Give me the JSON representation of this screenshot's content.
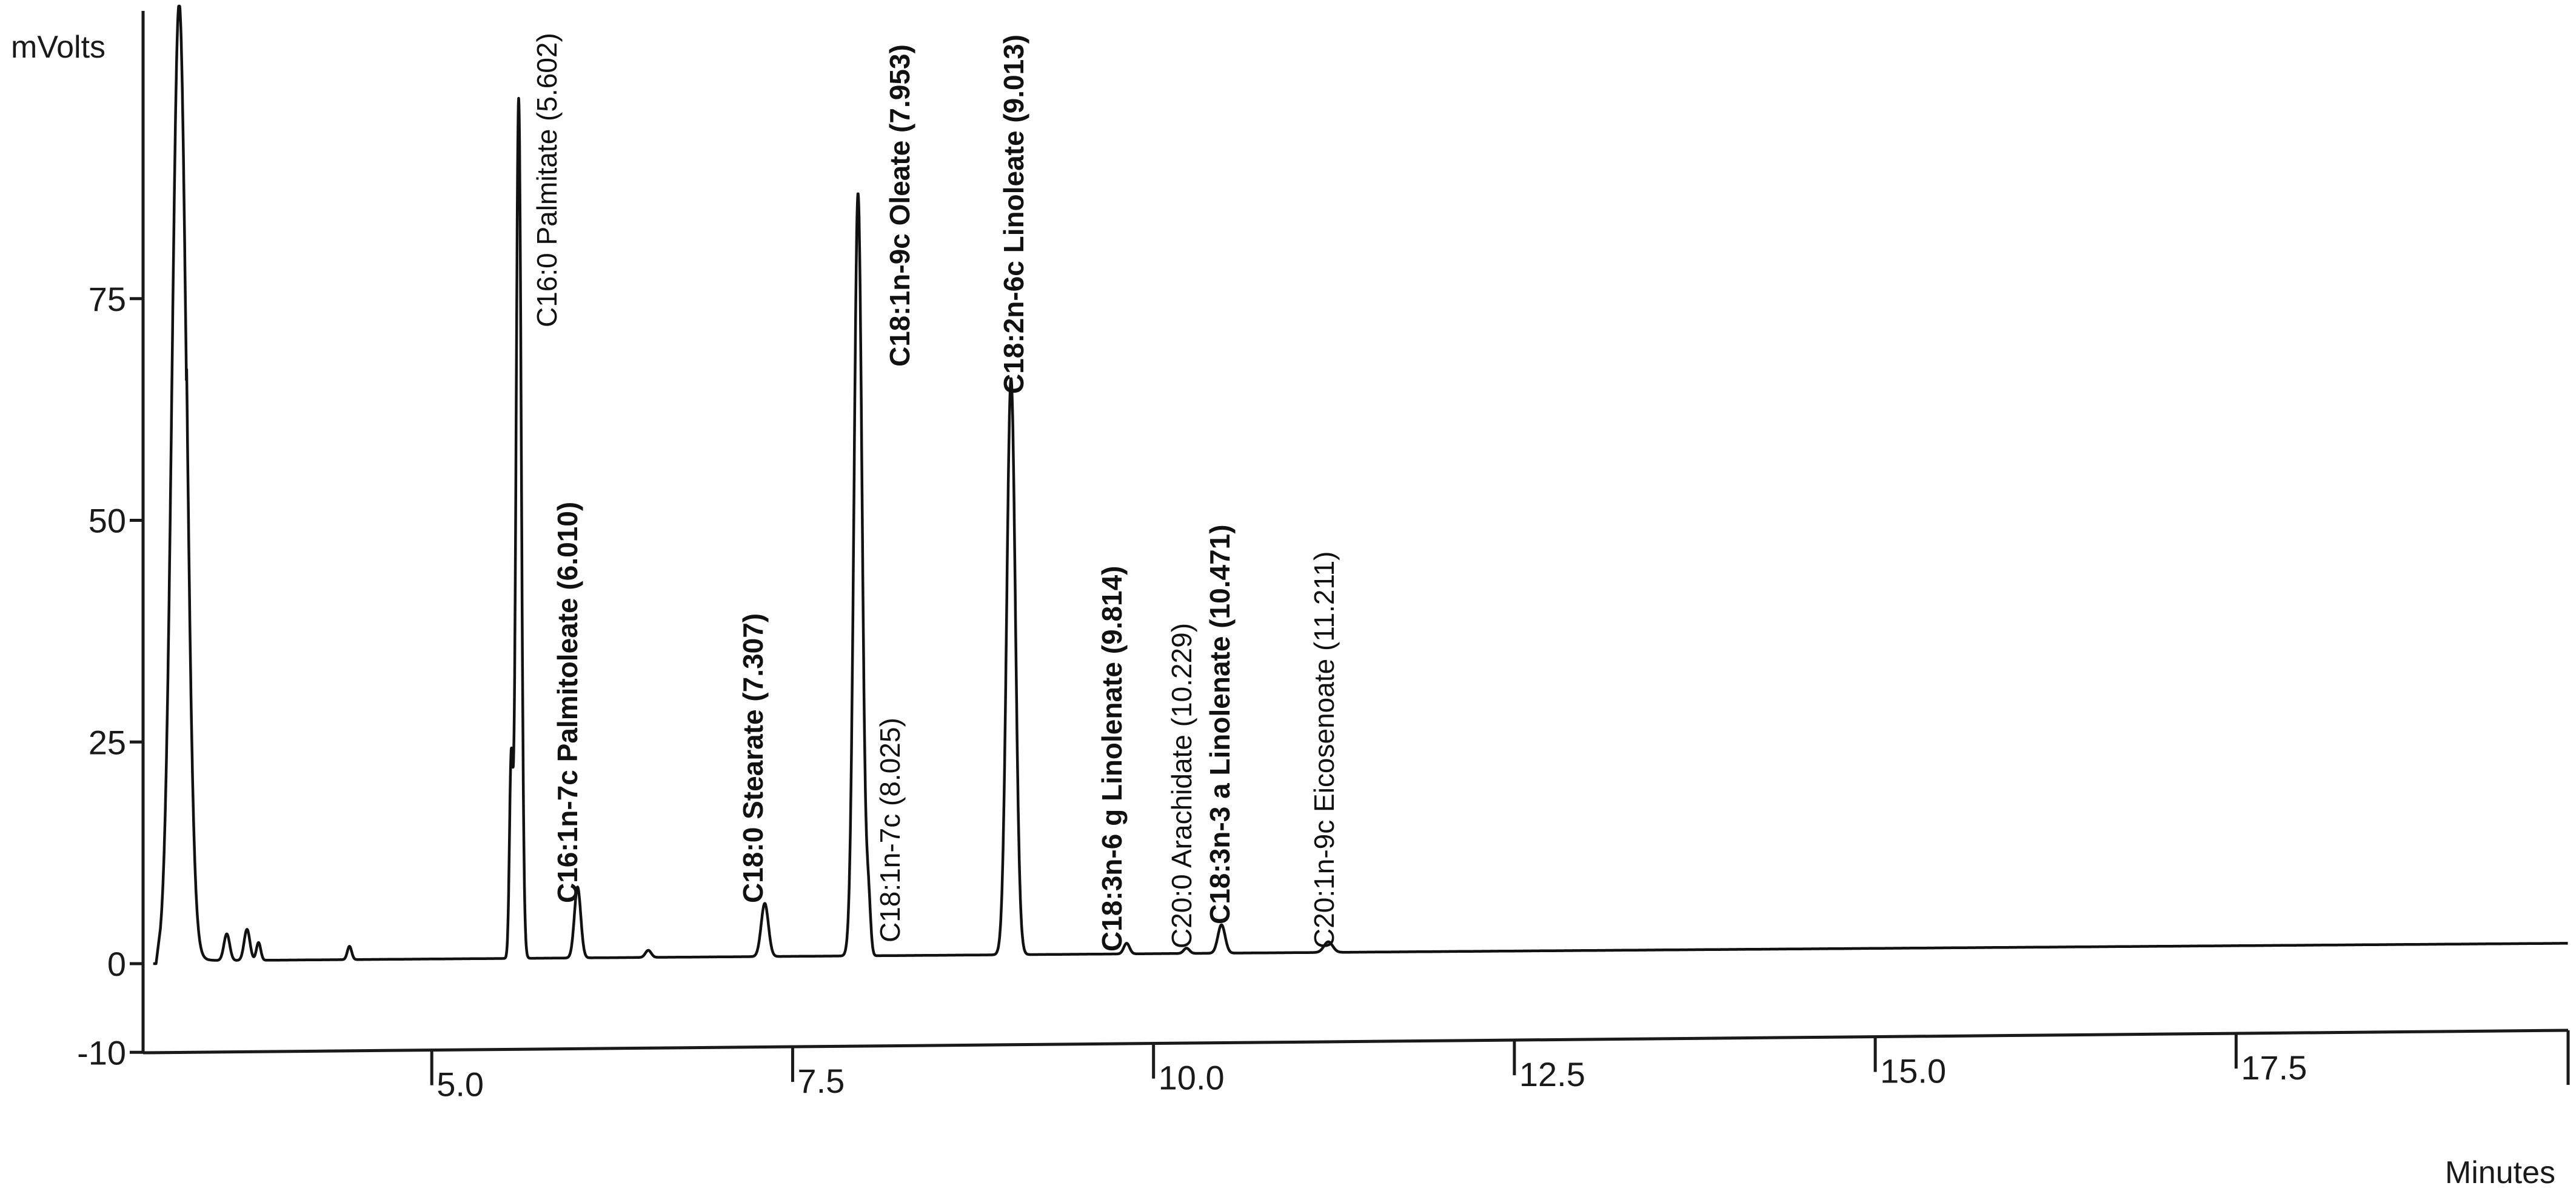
{
  "chart_data": {
    "type": "line",
    "title": "",
    "xlabel": "Minutes",
    "ylabel": "mVolts",
    "xlim": [
      3.0,
      19.8
    ],
    "ylim": [
      -10,
      108
    ],
    "x_ticks": [
      {
        "value": 5.0,
        "label": "5.0"
      },
      {
        "value": 7.5,
        "label": "7.5"
      },
      {
        "value": 10.0,
        "label": "10.0"
      },
      {
        "value": 12.5,
        "label": "12.5"
      },
      {
        "value": 15.0,
        "label": "15.0"
      },
      {
        "value": 17.5,
        "label": "17.5"
      }
    ],
    "y_ticks": [
      {
        "value": 75,
        "label": "75"
      },
      {
        "value": 50,
        "label": "50"
      },
      {
        "value": 25,
        "label": "25"
      },
      {
        "value": 0,
        "label": "0"
      },
      {
        "value": -10,
        "label": "-10"
      }
    ],
    "grid": false,
    "series": [
      {
        "peaks": [
          {
            "rt": 3.25,
            "height": 108,
            "width": 0.05
          },
          {
            "rt": 3.58,
            "height": 3,
            "width": 0.02
          },
          {
            "rt": 3.72,
            "height": 3.5,
            "width": 0.02
          },
          {
            "rt": 3.8,
            "height": 2,
            "width": 0.015
          },
          {
            "rt": 4.43,
            "height": 1.5,
            "width": 0.015
          },
          {
            "rt": 5.55,
            "height": 22,
            "width": 0.012
          },
          {
            "rt": 5.602,
            "height": 97,
            "width": 0.018
          },
          {
            "rt": 6.01,
            "height": 8,
            "width": 0.022
          },
          {
            "rt": 6.5,
            "height": 0.8,
            "width": 0.02
          },
          {
            "rt": 7.307,
            "height": 6,
            "width": 0.025
          },
          {
            "rt": 7.953,
            "height": 86,
            "width": 0.028
          },
          {
            "rt": 8.025,
            "height": 6,
            "width": 0.015
          },
          {
            "rt": 9.013,
            "height": 65,
            "width": 0.03
          },
          {
            "rt": 9.814,
            "height": 1.2,
            "width": 0.02
          },
          {
            "rt": 10.229,
            "height": 0.6,
            "width": 0.02
          },
          {
            "rt": 10.471,
            "height": 3.2,
            "width": 0.025
          },
          {
            "rt": 11.211,
            "height": 1.2,
            "width": 0.03
          }
        ],
        "baseline_start": 0.3,
        "baseline_end": 2.3
      }
    ],
    "annotations": [
      {
        "text": "C16:0 Palmitate (5.602)",
        "rt": 5.602,
        "bold": false
      },
      {
        "text": "C16:1n-7c Palmitoleate (6.010)",
        "rt": 6.01,
        "bold": true
      },
      {
        "text": "C18:0 Stearate (7.307)",
        "rt": 7.307,
        "bold": true
      },
      {
        "text": "C18:1n-9c Oleate (7.953)",
        "rt": 7.953,
        "bold": true
      },
      {
        "text": "C18:1n-7c (8.025)",
        "rt": 8.025,
        "bold": false
      },
      {
        "text": "C18:2n-6c Linoleate (9.013)",
        "rt": 9.013,
        "bold": true
      },
      {
        "text": "C18:3n-6 g Linolenate (9.814)",
        "rt": 9.814,
        "bold": true
      },
      {
        "text": "C20:0 Arachidate (10.229)",
        "rt": 10.229,
        "bold": false
      },
      {
        "text": "C18:3n-3 a Linolenate (10.471)",
        "rt": 10.471,
        "bold": true
      },
      {
        "text": "C20:1n-9c Eicosenoate (11.211)",
        "rt": 11.211,
        "bold": false
      }
    ]
  }
}
